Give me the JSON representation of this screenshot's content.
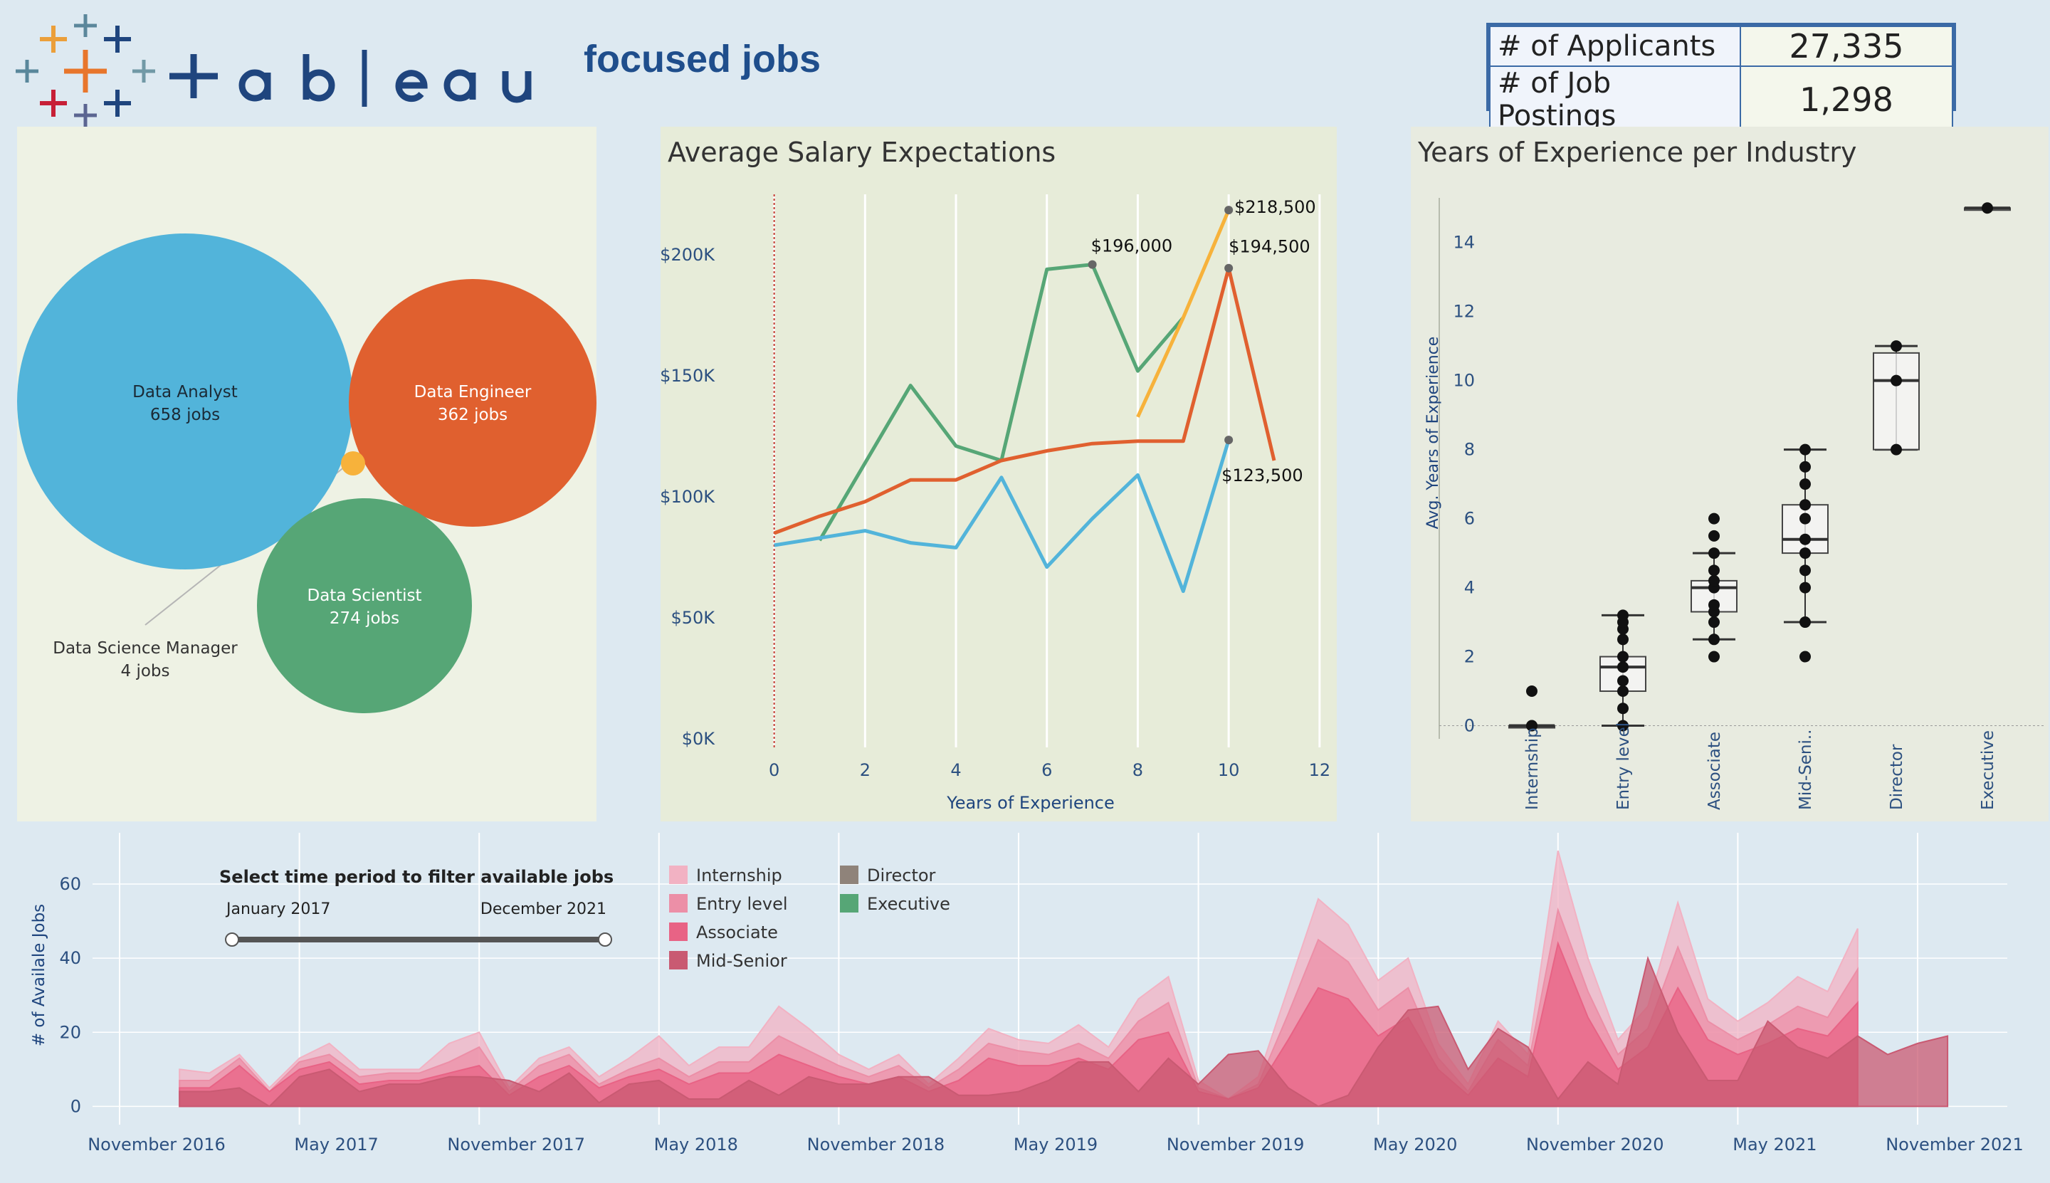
{
  "header": {
    "brand_word": "tableau",
    "dashboard_title": "focused jobs",
    "kpis": [
      {
        "label": "# of Applicants",
        "value": "27,335"
      },
      {
        "label": "# of Job Postings",
        "value": "1,298"
      }
    ]
  },
  "bubbles": {
    "items": [
      {
        "name": "Data Analyst",
        "count": "658 jobs",
        "value": 658,
        "color": "#52b4da"
      },
      {
        "name": "Data Engineer",
        "count": "362 jobs",
        "value": 362,
        "color": "#e0602f"
      },
      {
        "name": "Data Scientist",
        "count": "274 jobs",
        "value": 274,
        "color": "#56a676"
      },
      {
        "name": "Data Science Manager",
        "count": "4 jobs",
        "value": 4,
        "color": "#f7b23b"
      }
    ]
  },
  "salary": {
    "title": "Average Salary Expectations",
    "xlabel": "Years of Experience",
    "chart_data": {
      "type": "line",
      "xlim": [
        -2.5,
        12.3
      ],
      "ylim": [
        0,
        225000
      ],
      "x_ticks": [
        0,
        2,
        4,
        6,
        8,
        10,
        12
      ],
      "y_ticks": [
        {
          "v": 0,
          "label": "$0K"
        },
        {
          "v": 50000,
          "label": "$50K"
        },
        {
          "v": 100000,
          "label": "$100K"
        },
        {
          "v": 150000,
          "label": "$150K"
        },
        {
          "v": 200000,
          "label": "$200K"
        }
      ],
      "series": [
        {
          "color": "#56a676",
          "x": [
            1,
            2,
            3,
            4,
            5,
            6,
            7,
            8,
            9
          ],
          "y": [
            82000,
            114000,
            146000,
            121000,
            115000,
            194000,
            196000,
            152000,
            174000
          ]
        },
        {
          "color": "#f7b23b",
          "x": [
            8,
            9,
            10
          ],
          "y": [
            133000,
            174000,
            218500
          ]
        },
        {
          "color": "#e0602f",
          "x": [
            0,
            1,
            2,
            3,
            4,
            5,
            6,
            7,
            8,
            9,
            10,
            11
          ],
          "y": [
            85000,
            92000,
            98000,
            107000,
            107000,
            115000,
            119000,
            122000,
            123000,
            123000,
            194500,
            115000
          ]
        },
        {
          "color": "#52b4da",
          "x": [
            0,
            1,
            2,
            3,
            4,
            5,
            6,
            7,
            8,
            9,
            10
          ],
          "y": [
            80000,
            83000,
            86000,
            81000,
            79000,
            108000,
            71000,
            91000,
            109000,
            61000,
            123500
          ]
        }
      ],
      "annotations": [
        {
          "x": 7,
          "y": 196000,
          "label": "$196,000",
          "anchor": "start",
          "dx": -2,
          "dy": -18
        },
        {
          "x": 10,
          "y": 218500,
          "label": "$218,500",
          "anchor": "start",
          "dx": 8,
          "dy": 4
        },
        {
          "x": 10,
          "y": 194500,
          "label": "$194,500",
          "anchor": "start",
          "dx": 0,
          "dy": -22
        },
        {
          "x": 10,
          "y": 123500,
          "label": "$123,500",
          "anchor": "start",
          "dx": -10,
          "dy": 58
        }
      ],
      "reference_x": 0
    }
  },
  "experience": {
    "title": "Years of Experience per Industry",
    "ylabel": "Avg. Years of Experience",
    "chart_data": {
      "type": "box",
      "ylim": [
        -1,
        15.5
      ],
      "y_ticks": [
        0,
        2,
        4,
        6,
        8,
        10,
        12,
        14
      ],
      "categories": [
        "Internship",
        "Entry level",
        "Associate",
        "Mid-Seni..",
        "Director",
        "Executive"
      ],
      "boxes": [
        {
          "min": 0,
          "q1": 0,
          "median": 0,
          "q3": 0,
          "max": 0,
          "points": [
            0,
            0,
            1
          ]
        },
        {
          "min": 0,
          "q1": 1,
          "median": 1.7,
          "q3": 2,
          "max": 3.2,
          "points": [
            0,
            0.5,
            1,
            1.3,
            1.7,
            2,
            2.5,
            2.8,
            3,
            3.2
          ]
        },
        {
          "min": 2.5,
          "q1": 3.3,
          "median": 4,
          "q3": 4.2,
          "max": 5,
          "points": [
            2,
            2.5,
            3,
            3.3,
            3.5,
            4,
            4.2,
            4.5,
            5,
            5.5,
            6
          ]
        },
        {
          "min": 3,
          "q1": 5,
          "median": 5.4,
          "q3": 6.4,
          "max": 8,
          "points": [
            2,
            3,
            4,
            4.5,
            5,
            5.4,
            6,
            6.4,
            7,
            7.5,
            8
          ]
        },
        {
          "min": 8,
          "q1": 8,
          "median": 10,
          "q3": 10.8,
          "max": 11,
          "points": [
            8,
            10,
            11
          ]
        },
        {
          "min": 15,
          "q1": 15,
          "median": 15,
          "q3": 15,
          "max": 15,
          "points": [
            15
          ]
        }
      ]
    }
  },
  "timeline": {
    "ylabel": "# of Availale Jobs",
    "filter_title": "Select time period to filter available jobs",
    "filter_start": "January 2017",
    "filter_end": "December 2021",
    "legend": [
      {
        "label": "Internship",
        "color": "#f2b2c3"
      },
      {
        "label": "Entry level",
        "color": "#ec8fa7"
      },
      {
        "label": "Associate",
        "color": "#e86385"
      },
      {
        "label": "Mid-Senior",
        "color": "#c95a72"
      },
      {
        "label": "Director",
        "color": "#8f837a"
      },
      {
        "label": "Executive",
        "color": "#56a676"
      }
    ],
    "chart_data": {
      "type": "area",
      "y_ticks": [
        0,
        20,
        40,
        60
      ],
      "ylim": [
        -3,
        70
      ],
      "x_start_month_index": 0,
      "x_tick_labels": [
        "November 2016",
        "May 2017",
        "November 2017",
        "May 2018",
        "November 2018",
        "May 2019",
        "November 2019",
        "May 2020",
        "November 2020",
        "May 2021",
        "November 2021"
      ],
      "months_from": "2016-11",
      "series": [
        {
          "name": "Internship",
          "color": "#f2b2c3",
          "offset": 2,
          "values": [
            10,
            9,
            14,
            5,
            13,
            17,
            10,
            10,
            10,
            17,
            20,
            5,
            13,
            16,
            8,
            13,
            19,
            11,
            16,
            16,
            27,
            21,
            14,
            10,
            14,
            6,
            13,
            21,
            18,
            17,
            22,
            16,
            29,
            35,
            7,
            2,
            8,
            32,
            56,
            49,
            34,
            40,
            17,
            6,
            23,
            14,
            69,
            40,
            18,
            27,
            55,
            29,
            23,
            28,
            35,
            31,
            48
          ]
        },
        {
          "name": "Entry level",
          "color": "#ec8fa7",
          "offset": 2,
          "values": [
            7,
            7,
            13,
            4,
            12,
            14,
            8,
            9,
            9,
            12,
            16,
            4,
            11,
            14,
            6,
            10,
            13,
            8,
            12,
            12,
            19,
            15,
            11,
            8,
            11,
            5,
            10,
            17,
            15,
            14,
            17,
            13,
            23,
            28,
            5,
            2,
            6,
            25,
            45,
            39,
            26,
            32,
            13,
            4,
            18,
            11,
            53,
            31,
            14,
            21,
            43,
            23,
            18,
            22,
            27,
            24,
            37
          ]
        },
        {
          "name": "Associate",
          "color": "#e86385",
          "offset": 2,
          "values": [
            5,
            5,
            11,
            4,
            10,
            12,
            6,
            7,
            7,
            9,
            11,
            3,
            8,
            11,
            5,
            8,
            10,
            6,
            9,
            9,
            14,
            11,
            8,
            6,
            8,
            4,
            7,
            13,
            11,
            11,
            13,
            10,
            18,
            20,
            4,
            2,
            5,
            18,
            32,
            29,
            19,
            24,
            10,
            3,
            13,
            8,
            44,
            24,
            10,
            16,
            32,
            18,
            14,
            17,
            21,
            19,
            28
          ]
        },
        {
          "name": "Mid-Senior",
          "color": "#c95a72",
          "offset": 2,
          "values": [
            4,
            4,
            5,
            0,
            8,
            10,
            4,
            6,
            6,
            8,
            8,
            7,
            4,
            9,
            1,
            6,
            7,
            2,
            2,
            7,
            3,
            8,
            6,
            6,
            8,
            8,
            3,
            3,
            4,
            7,
            12,
            12,
            4,
            13,
            6,
            14,
            15,
            5,
            0,
            3,
            16,
            26,
            27,
            10,
            21,
            16,
            2,
            12,
            6,
            40,
            20,
            7,
            7,
            23,
            16,
            13,
            19,
            14,
            17,
            19
          ]
        }
      ]
    }
  }
}
